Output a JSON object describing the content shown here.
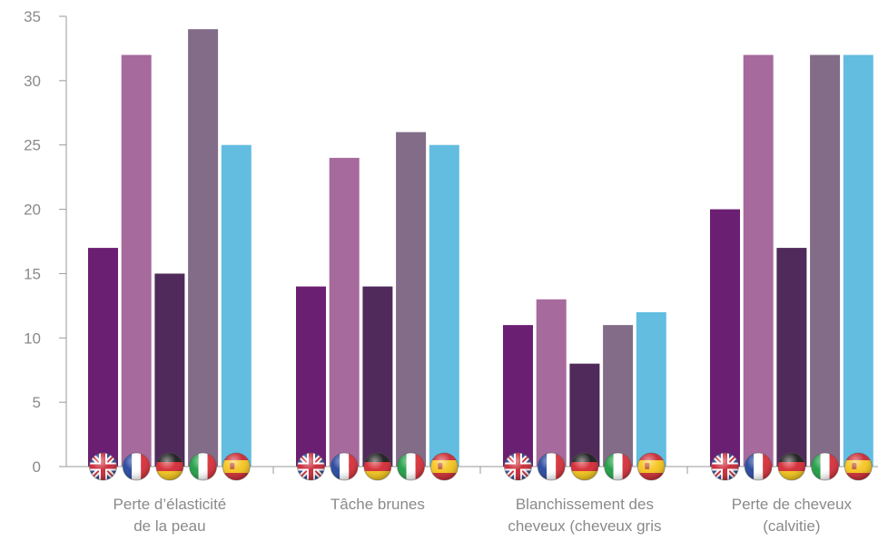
{
  "chart_data": {
    "type": "bar",
    "categories": [
      [
        "Perte d’élasticité",
        "de la peau"
      ],
      [
        "Tâche brunes"
      ],
      [
        "Blanchissement des",
        "cheveux (cheveux gris"
      ],
      [
        "Perte de cheveux",
        "(calvitie)"
      ]
    ],
    "series": [
      {
        "flag": "uk-flag-icon",
        "color": "#6b1f72",
        "values": [
          17,
          14,
          11,
          20
        ]
      },
      {
        "flag": "france-flag-icon",
        "color": "#a76a9c",
        "values": [
          32,
          24,
          13,
          32
        ]
      },
      {
        "flag": "germany-flag-icon",
        "color": "#4f2a5b",
        "values": [
          15,
          14,
          8,
          17
        ]
      },
      {
        "flag": "italy-flag-icon",
        "color": "#826c88",
        "values": [
          34,
          26,
          11,
          32
        ]
      },
      {
        "flag": "spain-flag-icon",
        "color": "#62bde1",
        "values": [
          25,
          25,
          12,
          32
        ]
      }
    ],
    "y_ticks": [
      "0",
      "5",
      "10",
      "15",
      "20",
      "25",
      "30",
      "35"
    ],
    "ylim": [
      0,
      35
    ],
    "grid": false,
    "legend": "none"
  }
}
